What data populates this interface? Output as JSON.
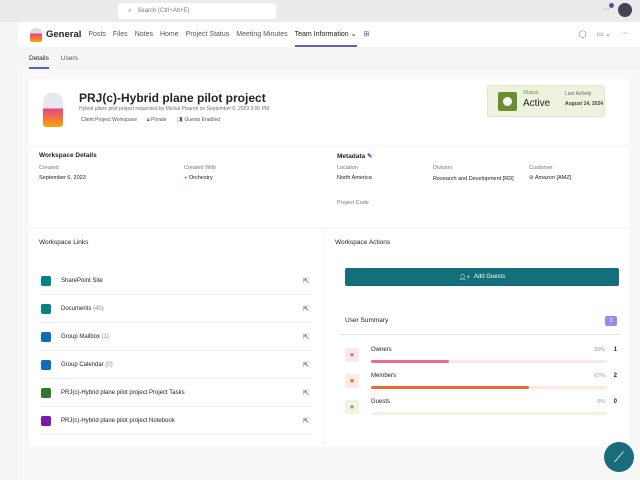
{
  "search": {
    "placeholder": "Search (Ctrl+Alt+E)"
  },
  "channel": {
    "name": "General",
    "tabs": [
      "Posts",
      "Files",
      "Notes",
      "Home",
      "Project Status",
      "Meeting Minutes",
      "Team Information"
    ],
    "active_tab": "Team Information"
  },
  "subtabs": [
    "Details",
    "Users"
  ],
  "project": {
    "title": "PRJ(c)-Hybrid plane pilot project",
    "subtitle": "Hybrid plane pilot project requested by Michal Pisarek on September 6, 2023 3:06 PM",
    "tags": [
      "Client Project Workspace",
      "Private",
      "Guests Enabled"
    ]
  },
  "status": {
    "label": "Status",
    "value": "Active",
    "last_activity_label": "Last Activity",
    "last_activity": "August 14, 2024",
    "color": "#6b8e2f"
  },
  "workspace_details": {
    "title": "Workspace Details",
    "created_label": "Created",
    "created": "September 6, 2023",
    "created_with_label": "Created With",
    "created_with": "Orchestry"
  },
  "metadata": {
    "title": "Metadata",
    "location_label": "Location",
    "location": "North America",
    "division_label": "Division",
    "division": "Research and Development [RD]",
    "customer_label": "Customer",
    "customer": "Amazon [AMZ]",
    "project_code_label": "Project Code"
  },
  "links": {
    "title": "Workspace Links",
    "items": [
      {
        "label": "SharePoint Site",
        "color": "#038387"
      },
      {
        "label": "Documents",
        "count": "(40)",
        "color": "#038387"
      },
      {
        "label": "Group Mailbox",
        "count": "(1)",
        "color": "#0f6cbd"
      },
      {
        "label": "Group Calendar",
        "count": "(0)",
        "color": "#0f6cbd"
      },
      {
        "label": "PRJ(c)-Hybrid plane pilot project Project Tasks",
        "color": "#31752f"
      },
      {
        "label": "PRJ(c)-Hybrid plane pilot project Notebook",
        "color": "#7719aa"
      }
    ]
  },
  "actions": {
    "title": "Workspace Actions",
    "add_guests": "Add Guests",
    "accent": "#136f7a"
  },
  "user_summary": {
    "title": "User Summary",
    "total": "3",
    "rows": [
      {
        "label": "Owners",
        "percent": 33,
        "percent_text": "33%",
        "count": "1",
        "color": "#f06a8f",
        "bg": "#fde7ee"
      },
      {
        "label": "Members",
        "percent": 67,
        "percent_text": "67%",
        "count": "2",
        "color": "#ea6a3a",
        "bg": "#fde9e2"
      },
      {
        "label": "Guests",
        "percent": 0,
        "percent_text": "0%",
        "count": "0",
        "color": "#7ab648",
        "bg": "#eef5e3"
      }
    ]
  }
}
